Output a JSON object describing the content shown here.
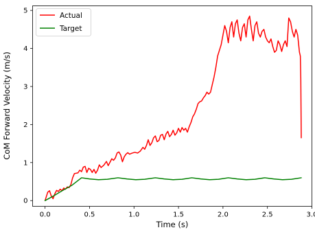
{
  "chart_data": {
    "type": "line",
    "xlabel": "Time (s)",
    "ylabel": "CoM Forward Velocity (m/s)",
    "xlim": [
      -0.14,
      3.0
    ],
    "ylim": [
      -0.15,
      5.12
    ],
    "xticks": [
      0.0,
      0.5,
      1.0,
      1.5,
      2.0,
      2.5,
      3.0
    ],
    "xtick_labels": [
      "0.0",
      "0.5",
      "1.0",
      "1.5",
      "2.0",
      "2.5",
      "3.0"
    ],
    "yticks": [
      0,
      1,
      2,
      3,
      4,
      5
    ],
    "ytick_labels": [
      "0",
      "1",
      "2",
      "3",
      "4",
      "5"
    ],
    "grid": false,
    "legend_position": "top-left",
    "series": [
      {
        "name": "Actual",
        "color": "#ff0000",
        "points": [
          [
            0.0,
            0.0
          ],
          [
            0.03,
            0.22
          ],
          [
            0.05,
            0.26
          ],
          [
            0.07,
            0.12
          ],
          [
            0.09,
            0.05
          ],
          [
            0.11,
            0.18
          ],
          [
            0.13,
            0.27
          ],
          [
            0.15,
            0.24
          ],
          [
            0.17,
            0.3
          ],
          [
            0.19,
            0.26
          ],
          [
            0.21,
            0.33
          ],
          [
            0.23,
            0.3
          ],
          [
            0.25,
            0.36
          ],
          [
            0.27,
            0.34
          ],
          [
            0.29,
            0.42
          ],
          [
            0.31,
            0.6
          ],
          [
            0.33,
            0.71
          ],
          [
            0.35,
            0.72
          ],
          [
            0.37,
            0.73
          ],
          [
            0.39,
            0.8
          ],
          [
            0.41,
            0.76
          ],
          [
            0.43,
            0.88
          ],
          [
            0.45,
            0.9
          ],
          [
            0.47,
            0.74
          ],
          [
            0.49,
            0.85
          ],
          [
            0.51,
            0.82
          ],
          [
            0.53,
            0.74
          ],
          [
            0.55,
            0.82
          ],
          [
            0.57,
            0.72
          ],
          [
            0.59,
            0.8
          ],
          [
            0.61,
            0.94
          ],
          [
            0.63,
            0.87
          ],
          [
            0.66,
            0.93
          ],
          [
            0.69,
            1.03
          ],
          [
            0.71,
            0.92
          ],
          [
            0.73,
            1.01
          ],
          [
            0.75,
            1.1
          ],
          [
            0.77,
            1.06
          ],
          [
            0.79,
            1.12
          ],
          [
            0.81,
            1.25
          ],
          [
            0.83,
            1.28
          ],
          [
            0.85,
            1.2
          ],
          [
            0.87,
            1.02
          ],
          [
            0.89,
            1.15
          ],
          [
            0.91,
            1.22
          ],
          [
            0.93,
            1.26
          ],
          [
            0.95,
            1.22
          ],
          [
            0.98,
            1.25
          ],
          [
            1.01,
            1.27
          ],
          [
            1.04,
            1.25
          ],
          [
            1.07,
            1.3
          ],
          [
            1.1,
            1.4
          ],
          [
            1.12,
            1.35
          ],
          [
            1.14,
            1.45
          ],
          [
            1.16,
            1.6
          ],
          [
            1.18,
            1.45
          ],
          [
            1.2,
            1.52
          ],
          [
            1.22,
            1.65
          ],
          [
            1.24,
            1.7
          ],
          [
            1.26,
            1.55
          ],
          [
            1.28,
            1.58
          ],
          [
            1.3,
            1.72
          ],
          [
            1.32,
            1.74
          ],
          [
            1.34,
            1.6
          ],
          [
            1.36,
            1.75
          ],
          [
            1.38,
            1.82
          ],
          [
            1.4,
            1.68
          ],
          [
            1.42,
            1.74
          ],
          [
            1.44,
            1.85
          ],
          [
            1.46,
            1.72
          ],
          [
            1.48,
            1.78
          ],
          [
            1.5,
            1.9
          ],
          [
            1.52,
            1.8
          ],
          [
            1.54,
            1.92
          ],
          [
            1.56,
            1.85
          ],
          [
            1.58,
            1.9
          ],
          [
            1.6,
            1.8
          ],
          [
            1.62,
            1.94
          ],
          [
            1.64,
            2.05
          ],
          [
            1.66,
            2.2
          ],
          [
            1.68,
            2.28
          ],
          [
            1.7,
            2.4
          ],
          [
            1.72,
            2.55
          ],
          [
            1.74,
            2.6
          ],
          [
            1.76,
            2.62
          ],
          [
            1.78,
            2.7
          ],
          [
            1.8,
            2.76
          ],
          [
            1.82,
            2.85
          ],
          [
            1.84,
            2.8
          ],
          [
            1.86,
            2.85
          ],
          [
            1.88,
            3.05
          ],
          [
            1.9,
            3.25
          ],
          [
            1.92,
            3.5
          ],
          [
            1.94,
            3.8
          ],
          [
            1.96,
            3.95
          ],
          [
            1.98,
            4.1
          ],
          [
            2.0,
            4.35
          ],
          [
            2.02,
            4.6
          ],
          [
            2.04,
            4.45
          ],
          [
            2.06,
            4.15
          ],
          [
            2.08,
            4.55
          ],
          [
            2.1,
            4.7
          ],
          [
            2.12,
            4.3
          ],
          [
            2.14,
            4.65
          ],
          [
            2.16,
            4.75
          ],
          [
            2.18,
            4.4
          ],
          [
            2.2,
            4.2
          ],
          [
            2.22,
            4.55
          ],
          [
            2.24,
            4.65
          ],
          [
            2.26,
            4.3
          ],
          [
            2.28,
            4.75
          ],
          [
            2.3,
            4.85
          ],
          [
            2.32,
            4.5
          ],
          [
            2.34,
            4.2
          ],
          [
            2.36,
            4.6
          ],
          [
            2.38,
            4.7
          ],
          [
            2.4,
            4.4
          ],
          [
            2.42,
            4.3
          ],
          [
            2.44,
            4.45
          ],
          [
            2.46,
            4.5
          ],
          [
            2.48,
            4.3
          ],
          [
            2.5,
            4.2
          ],
          [
            2.52,
            4.15
          ],
          [
            2.54,
            4.25
          ],
          [
            2.56,
            4.05
          ],
          [
            2.58,
            3.9
          ],
          [
            2.6,
            3.95
          ],
          [
            2.62,
            4.2
          ],
          [
            2.64,
            4.1
          ],
          [
            2.66,
            3.92
          ],
          [
            2.68,
            4.1
          ],
          [
            2.7,
            4.2
          ],
          [
            2.72,
            4.05
          ],
          [
            2.74,
            4.8
          ],
          [
            2.76,
            4.7
          ],
          [
            2.78,
            4.45
          ],
          [
            2.8,
            4.3
          ],
          [
            2.82,
            4.5
          ],
          [
            2.84,
            4.35
          ],
          [
            2.86,
            3.9
          ],
          [
            2.87,
            3.8
          ],
          [
            2.875,
            3.2
          ],
          [
            2.88,
            1.65
          ]
        ]
      },
      {
        "name": "Target",
        "color": "#008000",
        "points": [
          [
            0.0,
            0.0
          ],
          [
            0.1,
            0.13
          ],
          [
            0.2,
            0.27
          ],
          [
            0.3,
            0.4
          ],
          [
            0.41,
            0.6
          ],
          [
            0.5,
            0.57
          ],
          [
            0.6,
            0.55
          ],
          [
            0.7,
            0.56
          ],
          [
            0.82,
            0.6
          ],
          [
            0.92,
            0.57
          ],
          [
            1.02,
            0.55
          ],
          [
            1.12,
            0.56
          ],
          [
            1.24,
            0.6
          ],
          [
            1.34,
            0.57
          ],
          [
            1.44,
            0.55
          ],
          [
            1.54,
            0.56
          ],
          [
            1.65,
            0.6
          ],
          [
            1.75,
            0.57
          ],
          [
            1.85,
            0.55
          ],
          [
            1.95,
            0.56
          ],
          [
            2.06,
            0.6
          ],
          [
            2.16,
            0.57
          ],
          [
            2.26,
            0.55
          ],
          [
            2.36,
            0.56
          ],
          [
            2.47,
            0.6
          ],
          [
            2.57,
            0.57
          ],
          [
            2.67,
            0.55
          ],
          [
            2.77,
            0.56
          ],
          [
            2.88,
            0.6
          ]
        ]
      }
    ]
  }
}
